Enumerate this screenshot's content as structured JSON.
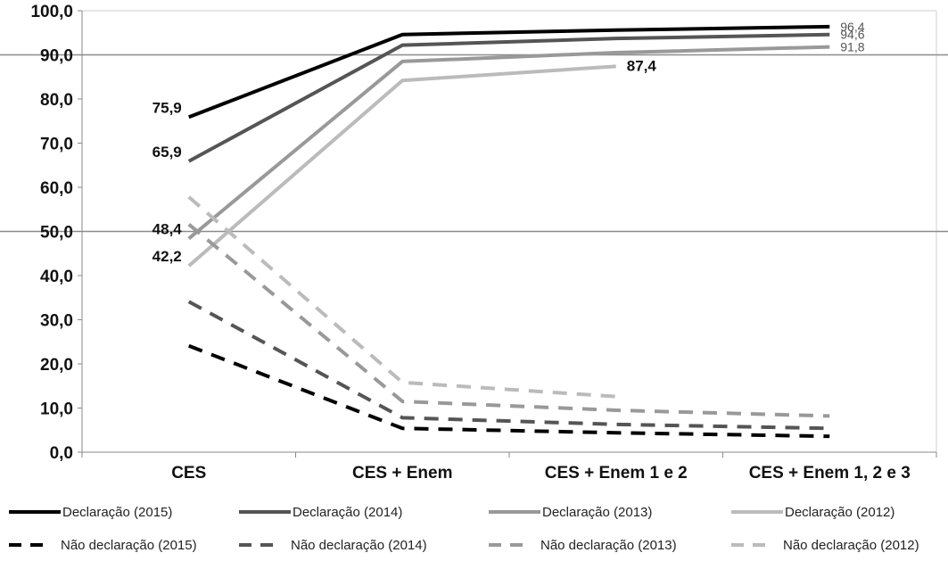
{
  "chart_data": {
    "type": "line",
    "categories": [
      "CES",
      "CES + Enem",
      "CES + Enem 1 e 2",
      "CES + Enem 1, 2 e 3"
    ],
    "ylim": [
      0,
      100
    ],
    "yticks": [
      "0,0",
      "10,0",
      "20,0",
      "30,0",
      "40,0",
      "50,0",
      "60,0",
      "70,0",
      "80,0",
      "90,0",
      "100,0"
    ],
    "reference_lines": [
      50,
      90
    ],
    "series": [
      {
        "name": "Declaração (2015)",
        "color": "#000000",
        "dashed": false,
        "values": [
          75.9,
          94.6,
          95.6,
          96.4
        ]
      },
      {
        "name": "Declaração (2014)",
        "color": "#555555",
        "dashed": false,
        "values": [
          65.9,
          92.2,
          93.7,
          94.6
        ]
      },
      {
        "name": "Declaração (2013)",
        "color": "#999999",
        "dashed": false,
        "values": [
          48.4,
          88.5,
          90.5,
          91.8
        ]
      },
      {
        "name": "Declaração (2012)",
        "color": "#bbbbbb",
        "dashed": false,
        "values": [
          42.2,
          84.2,
          87.4,
          null
        ]
      },
      {
        "name": "Não declaração (2015)",
        "color": "#000000",
        "dashed": true,
        "values": [
          24.1,
          5.4,
          4.4,
          3.6
        ]
      },
      {
        "name": "Não declaração (2014)",
        "color": "#555555",
        "dashed": true,
        "values": [
          34.1,
          7.8,
          6.3,
          5.4
        ]
      },
      {
        "name": "Não declaração (2013)",
        "color": "#999999",
        "dashed": true,
        "values": [
          51.6,
          11.5,
          9.5,
          8.2
        ]
      },
      {
        "name": "Não declaração (2012)",
        "color": "#bbbbbb",
        "dashed": true,
        "values": [
          57.8,
          15.8,
          12.6,
          null
        ]
      }
    ],
    "data_labels": [
      {
        "text": "75,9",
        "series": 0,
        "point": 0
      },
      {
        "text": "65,9",
        "series": 1,
        "point": 0
      },
      {
        "text": "48,4",
        "series": 2,
        "point": 0
      },
      {
        "text": "42,2",
        "series": 3,
        "point": 0
      },
      {
        "text": "96,4",
        "series": 0,
        "point": 3
      },
      {
        "text": "94,6",
        "series": 1,
        "point": 3
      },
      {
        "text": "91,8",
        "series": 2,
        "point": 3
      },
      {
        "text": "87,4",
        "series": 3,
        "point": 2
      }
    ],
    "legend_position": "bottom"
  }
}
